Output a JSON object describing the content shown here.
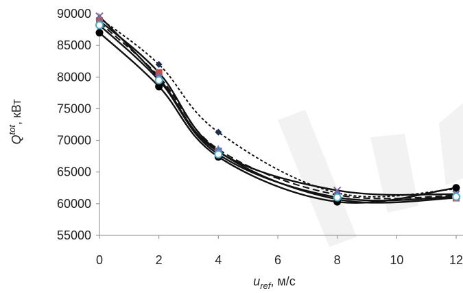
{
  "chart_data": {
    "type": "line",
    "title": "",
    "xlabel": {
      "base": "u",
      "sub": "ref",
      "rest": ", м/с"
    },
    "ylabel": {
      "base": "Q",
      "sup": "tot",
      "rest": ", кВт"
    },
    "xlim": [
      0,
      12
    ],
    "ylim": [
      55000,
      90000
    ],
    "xticks": [
      "0",
      "2",
      "4",
      "6",
      "8",
      "10",
      "12"
    ],
    "yticks": [
      "55000",
      "60000",
      "65000",
      "70000",
      "75000",
      "80000",
      "85000",
      "90000"
    ],
    "grid": false,
    "legend": "none",
    "x": [
      0,
      2,
      4,
      8,
      12
    ],
    "series": [
      {
        "style": "dotted",
        "marker": "diamond-filled",
        "values": [
          89300,
          82000,
          71300,
          61700,
          62300
        ]
      },
      {
        "style": "solid",
        "marker": "square",
        "values": [
          88900,
          80700,
          68300,
          60700,
          60900
        ]
      },
      {
        "style": "solid",
        "marker": "circle-filled",
        "values": [
          87000,
          78500,
          67400,
          60300,
          62500
        ]
      },
      {
        "style": "dashed",
        "marker": "triangle",
        "values": [
          88600,
          80100,
          68600,
          61400,
          61300
        ]
      },
      {
        "style": "solid",
        "marker": "x",
        "values": [
          89600,
          79800,
          68200,
          62100,
          61500
        ]
      },
      {
        "style": "solid",
        "marker": "circle-open",
        "values": [
          88200,
          79500,
          67800,
          61000,
          61100
        ]
      }
    ],
    "colors": {
      "line": "#111111",
      "square": "#c0504d",
      "triangle": "#4f81bd",
      "x": "#8064a2",
      "circle-open": "#4bacc6"
    }
  }
}
